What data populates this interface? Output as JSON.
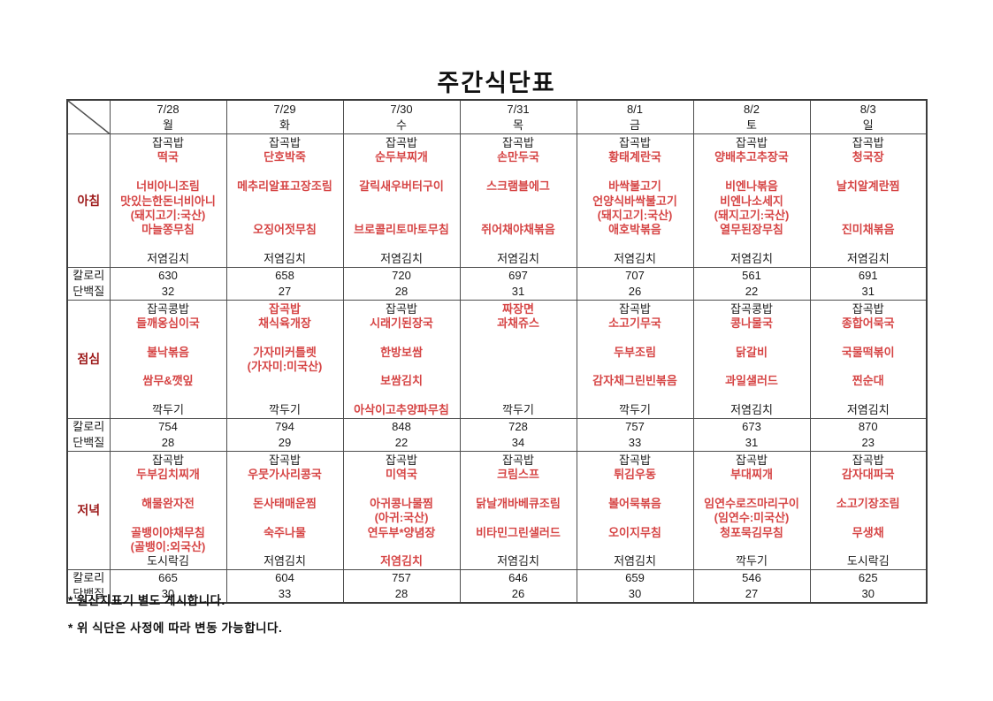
{
  "title": "주간식단표",
  "header": {
    "days": [
      {
        "date": "7/28",
        "day": "월"
      },
      {
        "date": "7/29",
        "day": "화"
      },
      {
        "date": "7/30",
        "day": "수"
      },
      {
        "date": "7/31",
        "day": "목"
      },
      {
        "date": "8/1",
        "day": "금"
      },
      {
        "date": "8/2",
        "day": "토"
      },
      {
        "date": "8/3",
        "day": "일"
      }
    ]
  },
  "nutrition_labels": {
    "calorie": "칼로리",
    "protein": "단백질"
  },
  "colors": {
    "menu_red": "#d64545",
    "section_label_red": "#9e1b1b",
    "text_black": "#1a1a1a",
    "border": "#4d4d4d"
  },
  "sections": [
    {
      "id": "breakfast",
      "label": "아침",
      "menus": [
        [
          [
            "잡곡밥",
            "k"
          ],
          [
            "떡국",
            "r"
          ],
          [
            "",
            ""
          ],
          [
            "너비아니조림",
            "r"
          ],
          [
            "맛있는한돈너비아니",
            "r"
          ],
          [
            "(돼지고기:국산)",
            "r"
          ],
          [
            "마늘쫑무침",
            "r"
          ],
          [
            "",
            ""
          ],
          [
            "저염김치",
            "k"
          ]
        ],
        [
          [
            "잡곡밥",
            "k"
          ],
          [
            "단호박죽",
            "r"
          ],
          [
            "",
            ""
          ],
          [
            "메추리알표고장조림",
            "r"
          ],
          [
            "",
            ""
          ],
          [
            "",
            ""
          ],
          [
            "오징어젓무침",
            "r"
          ],
          [
            "",
            ""
          ],
          [
            "저염김치",
            "k"
          ]
        ],
        [
          [
            "잡곡밥",
            "k"
          ],
          [
            "순두부찌개",
            "r"
          ],
          [
            "",
            ""
          ],
          [
            "갈릭새우버터구이",
            "r"
          ],
          [
            "",
            ""
          ],
          [
            "",
            ""
          ],
          [
            "브로콜리토마토무침",
            "r"
          ],
          [
            "",
            ""
          ],
          [
            "저염김치",
            "k"
          ]
        ],
        [
          [
            "잡곡밥",
            "k"
          ],
          [
            "손만두국",
            "r"
          ],
          [
            "",
            ""
          ],
          [
            "스크램블에그",
            "r"
          ],
          [
            "",
            ""
          ],
          [
            "",
            ""
          ],
          [
            "쥐어채야채볶음",
            "r"
          ],
          [
            "",
            ""
          ],
          [
            "저염김치",
            "k"
          ]
        ],
        [
          [
            "잡곡밥",
            "k"
          ],
          [
            "황태계란국",
            "r"
          ],
          [
            "",
            ""
          ],
          [
            "바싹불고기",
            "r"
          ],
          [
            "언양식바싹불고기",
            "r"
          ],
          [
            "(돼지고기:국산)",
            "r"
          ],
          [
            "애호박볶음",
            "r"
          ],
          [
            "",
            ""
          ],
          [
            "저염김치",
            "k"
          ]
        ],
        [
          [
            "잡곡밥",
            "k"
          ],
          [
            "양배추고추장국",
            "r"
          ],
          [
            "",
            ""
          ],
          [
            "비엔나볶음",
            "r"
          ],
          [
            "비엔나소세지",
            "r"
          ],
          [
            "(돼지고기:국산)",
            "r"
          ],
          [
            "열무된장무침",
            "r"
          ],
          [
            "",
            ""
          ],
          [
            "저염김치",
            "k"
          ]
        ],
        [
          [
            "잡곡밥",
            "k"
          ],
          [
            "청국장",
            "r"
          ],
          [
            "",
            ""
          ],
          [
            "날치알계란찜",
            "r"
          ],
          [
            "",
            ""
          ],
          [
            "",
            ""
          ],
          [
            "진미채볶음",
            "r"
          ],
          [
            "",
            ""
          ],
          [
            "저염김치",
            "k"
          ]
        ]
      ],
      "calories": [
        "630",
        "658",
        "720",
        "697",
        "707",
        "561",
        "691"
      ],
      "protein": [
        "32",
        "27",
        "28",
        "31",
        "26",
        "22",
        "31"
      ]
    },
    {
      "id": "lunch",
      "label": "점심",
      "menus": [
        [
          [
            "잡곡콩밥",
            "k"
          ],
          [
            "들깨옹심이국",
            "r"
          ],
          [
            "",
            ""
          ],
          [
            "불낙볶음",
            "r"
          ],
          [
            "",
            ""
          ],
          [
            "쌈무&깻잎",
            "r"
          ],
          [
            "",
            ""
          ],
          [
            "깍두기",
            "k"
          ]
        ],
        [
          [
            "잡곡밥",
            "r"
          ],
          [
            "채식육개장",
            "r"
          ],
          [
            "",
            ""
          ],
          [
            "가자미커틀렛",
            "r"
          ],
          [
            "(가자미:미국산)",
            "r"
          ],
          [
            "",
            ""
          ],
          [
            "",
            ""
          ],
          [
            "깍두기",
            "k"
          ]
        ],
        [
          [
            "잡곡밥",
            "k"
          ],
          [
            "시래기된장국",
            "r"
          ],
          [
            "",
            ""
          ],
          [
            "한방보쌈",
            "r"
          ],
          [
            "",
            ""
          ],
          [
            "보쌈김치",
            "r"
          ],
          [
            "",
            ""
          ],
          [
            "아삭이고추양파무침",
            "r"
          ]
        ],
        [
          [
            "짜장면",
            "r"
          ],
          [
            "과채쥬스",
            "r"
          ],
          [
            "",
            ""
          ],
          [
            "",
            ""
          ],
          [
            "",
            ""
          ],
          [
            "",
            ""
          ],
          [
            "",
            ""
          ],
          [
            "깍두기",
            "k"
          ]
        ],
        [
          [
            "잡곡밥",
            "k"
          ],
          [
            "소고기무국",
            "r"
          ],
          [
            "",
            ""
          ],
          [
            "두부조림",
            "r"
          ],
          [
            "",
            ""
          ],
          [
            "감자채그린빈볶음",
            "r"
          ],
          [
            "",
            ""
          ],
          [
            "깍두기",
            "k"
          ]
        ],
        [
          [
            "잡곡콩밥",
            "k"
          ],
          [
            "콩나물국",
            "r"
          ],
          [
            "",
            ""
          ],
          [
            "닭갈비",
            "r"
          ],
          [
            "",
            ""
          ],
          [
            "과일샐러드",
            "r"
          ],
          [
            "",
            ""
          ],
          [
            "저염김치",
            "k"
          ]
        ],
        [
          [
            "잡곡밥",
            "k"
          ],
          [
            "종합어묵국",
            "r"
          ],
          [
            "",
            ""
          ],
          [
            "국물떡볶이",
            "r"
          ],
          [
            "",
            ""
          ],
          [
            "찐순대",
            "r"
          ],
          [
            "",
            ""
          ],
          [
            "저염김치",
            "k"
          ]
        ]
      ],
      "calories": [
        "754",
        "794",
        "848",
        "728",
        "757",
        "673",
        "870"
      ],
      "protein": [
        "28",
        "29",
        "22",
        "34",
        "33",
        "31",
        "23"
      ]
    },
    {
      "id": "dinner",
      "label": "저녁",
      "menus": [
        [
          [
            "잡곡밥",
            "k"
          ],
          [
            "두부김치찌개",
            "r"
          ],
          [
            "",
            ""
          ],
          [
            "해물완자전",
            "r"
          ],
          [
            "",
            ""
          ],
          [
            "골뱅이야채무침",
            "r"
          ],
          [
            "(골뱅이:외국산)",
            "r"
          ],
          [
            "도시락김",
            "k"
          ]
        ],
        [
          [
            "잡곡밥",
            "k"
          ],
          [
            "우뭇가사리콩국",
            "r"
          ],
          [
            "",
            ""
          ],
          [
            "돈사태매운찜",
            "r"
          ],
          [
            "",
            ""
          ],
          [
            "숙주나물",
            "r"
          ],
          [
            "",
            ""
          ],
          [
            "저염김치",
            "k"
          ]
        ],
        [
          [
            "잡곡밥",
            "k"
          ],
          [
            "미역국",
            "r"
          ],
          [
            "",
            ""
          ],
          [
            "아귀콩나물찜",
            "r"
          ],
          [
            "(아귀:국산)",
            "r"
          ],
          [
            "연두부*양념장",
            "r"
          ],
          [
            "",
            ""
          ],
          [
            "저염김치",
            "r"
          ]
        ],
        [
          [
            "잡곡밥",
            "k"
          ],
          [
            "크림스프",
            "r"
          ],
          [
            "",
            ""
          ],
          [
            "닭날개바베큐조림",
            "r"
          ],
          [
            "",
            ""
          ],
          [
            "비타민그린샐러드",
            "r"
          ],
          [
            "",
            ""
          ],
          [
            "저염김치",
            "k"
          ]
        ],
        [
          [
            "잡곡밥",
            "k"
          ],
          [
            "튀김우동",
            "r"
          ],
          [
            "",
            ""
          ],
          [
            "볼어묵볶음",
            "r"
          ],
          [
            "",
            ""
          ],
          [
            "오이지무침",
            "r"
          ],
          [
            "",
            ""
          ],
          [
            "저염김치",
            "k"
          ]
        ],
        [
          [
            "잡곡밥",
            "k"
          ],
          [
            "부대찌개",
            "r"
          ],
          [
            "",
            ""
          ],
          [
            "임연수로즈마리구이",
            "r"
          ],
          [
            "(임연수:미국산)",
            "r"
          ],
          [
            "청포묵김무침",
            "r"
          ],
          [
            "",
            ""
          ],
          [
            "깍두기",
            "k"
          ]
        ],
        [
          [
            "잡곡밥",
            "k"
          ],
          [
            "감자대파국",
            "r"
          ],
          [
            "",
            ""
          ],
          [
            "소고기장조림",
            "r"
          ],
          [
            "",
            ""
          ],
          [
            "무생채",
            "r"
          ],
          [
            "",
            ""
          ],
          [
            "도시락김",
            "k"
          ]
        ]
      ],
      "calories": [
        "665",
        "604",
        "757",
        "646",
        "659",
        "546",
        "625"
      ],
      "protein": [
        "30",
        "33",
        "28",
        "26",
        "30",
        "27",
        "30"
      ]
    }
  ],
  "notes": [
    "* 원산지표기 별도 게시합니다.",
    "* 위 식단은 사정에 따라 변동 가능합니다."
  ]
}
